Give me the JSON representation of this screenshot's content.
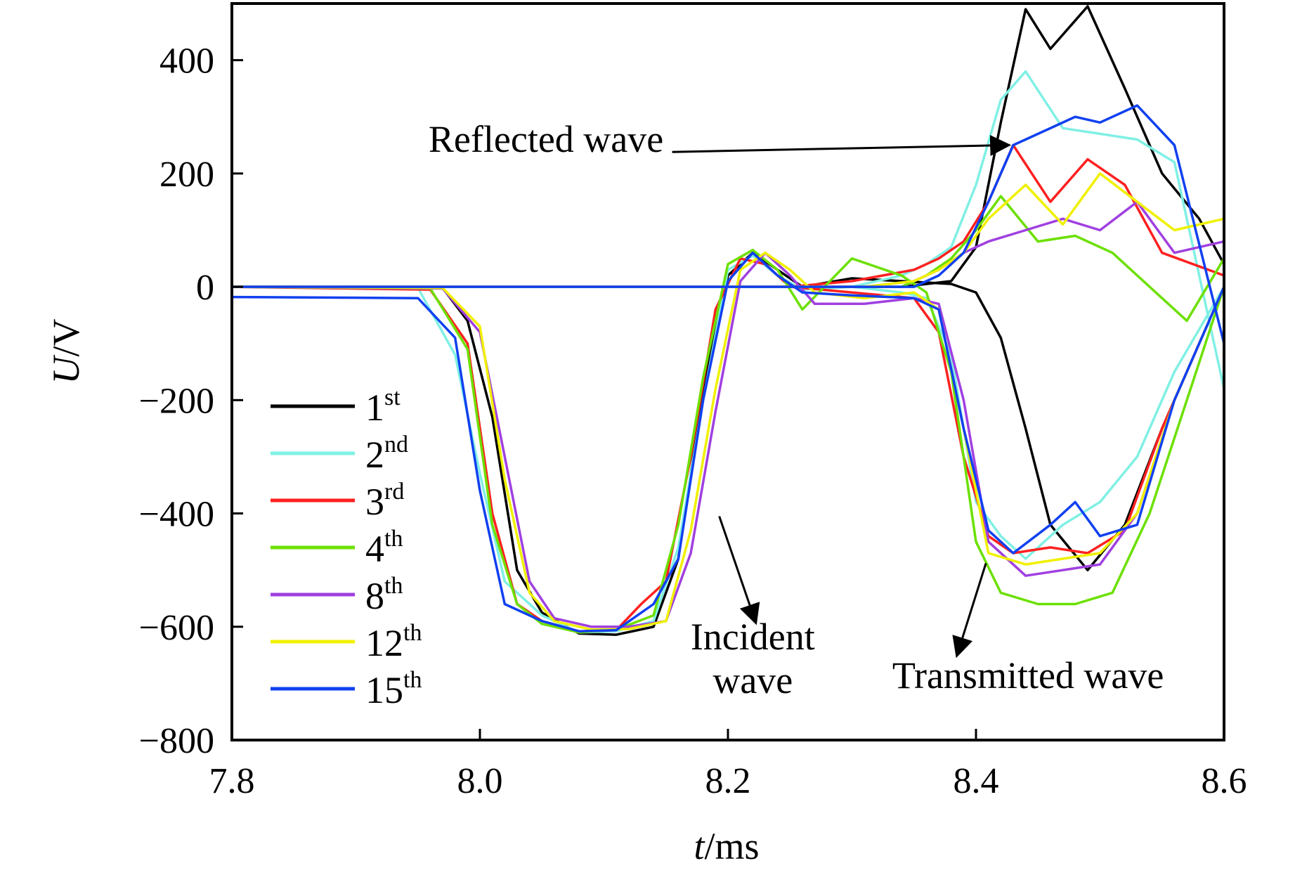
{
  "chart_data": {
    "type": "line",
    "xlabel_var": "t",
    "xlabel_unit": "/ms",
    "ylabel_var": "U",
    "ylabel_unit": "/V",
    "xlim": [
      7.8,
      8.6
    ],
    "ylim": [
      -800,
      500
    ],
    "xticks": [
      {
        "value": 7.8,
        "label": "7.8"
      },
      {
        "value": 8.0,
        "label": "8.0"
      },
      {
        "value": 8.2,
        "label": "8.2"
      },
      {
        "value": 8.4,
        "label": "8.4"
      },
      {
        "value": 8.6,
        "label": "8.6"
      }
    ],
    "yticks": [
      {
        "value": 400,
        "label": "400"
      },
      {
        "value": 200,
        "label": "200"
      },
      {
        "value": 0,
        "label": "0"
      },
      {
        "value": -200,
        "label": "−200"
      },
      {
        "value": -400,
        "label": "−400"
      },
      {
        "value": -600,
        "label": "−600"
      },
      {
        "value": -800,
        "label": "−800"
      }
    ],
    "grid": false,
    "legend_position": "lower-left",
    "annotations": [
      {
        "lines": [
          "Reflected wave"
        ],
        "anchor": "end",
        "x": 8.148,
        "y": 238,
        "arrow_from": [
          8.155,
          238
        ],
        "arrow_to": [
          8.425,
          250
        ]
      },
      {
        "lines": [
          "Incident",
          "wave"
        ],
        "anchor": "middle",
        "x": 8.22,
        "y": -640,
        "arrow_from": [
          8.193,
          -405
        ],
        "arrow_to": [
          8.222,
          -590
        ]
      },
      {
        "lines": [
          "Transmitted wave"
        ],
        "anchor": "middle",
        "x": 8.442,
        "y": -708,
        "arrow_from": [
          8.408,
          -488
        ],
        "arrow_to": [
          8.385,
          -648
        ]
      }
    ],
    "series": [
      {
        "name": "1",
        "sup": "st",
        "color": "#000000",
        "x": [
          7.8,
          7.97,
          7.99,
          8.01,
          8.03,
          8.05,
          8.08,
          8.11,
          8.14,
          8.16,
          8.18,
          8.2,
          8.22,
          8.24,
          8.26,
          8.3,
          8.34,
          8.38,
          8.4,
          8.42,
          8.44,
          8.46,
          8.49,
          8.52,
          8.55,
          8.58,
          8.6
        ],
        "y": [
          0,
          -2,
          -60,
          -230,
          -500,
          -575,
          -612,
          -614,
          -600,
          -480,
          -180,
          20,
          60,
          30,
          0,
          15,
          10,
          5,
          -10,
          -90,
          -250,
          -420,
          -500,
          -420,
          -250,
          -100,
          0
        ],
        "y2": [
          0,
          0,
          0,
          0,
          0,
          0,
          0,
          0,
          0,
          0,
          0,
          0,
          0,
          0,
          0,
          0,
          0,
          10,
          70,
          290,
          490,
          420,
          495,
          350,
          200,
          120,
          40
        ]
      },
      {
        "name": "2",
        "sup": "nd",
        "color": "#80f0e4",
        "x": [
          7.8,
          7.95,
          7.98,
          8.0,
          8.02,
          8.05,
          8.08,
          8.11,
          8.14,
          8.16,
          8.18,
          8.2,
          8.22,
          8.24,
          8.26,
          8.3,
          8.34,
          8.36,
          8.38,
          8.4,
          8.42,
          8.44,
          8.47,
          8.5,
          8.53,
          8.56,
          8.6
        ],
        "y": [
          0,
          -2,
          -120,
          -330,
          -520,
          -580,
          -610,
          -608,
          -590,
          -460,
          -200,
          30,
          55,
          20,
          -5,
          0,
          -10,
          -20,
          -120,
          -380,
          -440,
          -480,
          -420,
          -380,
          -300,
          -150,
          0
        ],
        "y2": [
          0,
          0,
          0,
          0,
          0,
          0,
          0,
          0,
          0,
          0,
          0,
          0,
          0,
          0,
          0,
          0,
          20,
          40,
          70,
          180,
          330,
          380,
          280,
          270,
          260,
          220,
          -180
        ]
      },
      {
        "name": "3",
        "sup": "rd",
        "color": "#ff2020",
        "x": [
          7.8,
          7.96,
          7.99,
          8.01,
          8.03,
          8.05,
          8.08,
          8.11,
          8.13,
          8.15,
          8.17,
          8.19,
          8.21,
          8.23,
          8.25,
          8.3,
          8.35,
          8.37,
          8.39,
          8.41,
          8.43,
          8.46,
          8.49,
          8.52,
          8.55,
          8.6
        ],
        "y": [
          0,
          -5,
          -100,
          -400,
          -560,
          -590,
          -608,
          -606,
          -560,
          -520,
          -300,
          -40,
          50,
          40,
          0,
          -10,
          -20,
          -80,
          -300,
          -440,
          -470,
          -460,
          -470,
          -430,
          -250,
          0
        ],
        "y2": [
          0,
          0,
          0,
          0,
          0,
          0,
          0,
          0,
          0,
          0,
          0,
          0,
          0,
          0,
          0,
          10,
          30,
          50,
          80,
          150,
          250,
          150,
          225,
          180,
          60,
          20
        ]
      },
      {
        "name": "4",
        "sup": "th",
        "color": "#6ce000",
        "x": [
          7.8,
          7.96,
          7.99,
          8.01,
          8.03,
          8.05,
          8.08,
          8.11,
          8.14,
          8.16,
          8.18,
          8.2,
          8.22,
          8.24,
          8.26,
          8.3,
          8.34,
          8.36,
          8.38,
          8.4,
          8.42,
          8.45,
          8.48,
          8.51,
          8.54,
          8.57,
          8.6
        ],
        "y": [
          0,
          -3,
          -110,
          -420,
          -560,
          -595,
          -610,
          -605,
          -580,
          -420,
          -160,
          40,
          65,
          30,
          -40,
          50,
          20,
          -10,
          -150,
          -450,
          -540,
          -560,
          -560,
          -540,
          -400,
          -200,
          0
        ],
        "y2": [
          0,
          0,
          0,
          0,
          0,
          0,
          0,
          0,
          0,
          0,
          0,
          0,
          0,
          0,
          0,
          0,
          0,
          20,
          50,
          100,
          160,
          80,
          90,
          60,
          0,
          -60,
          50
        ]
      },
      {
        "name": "8",
        "sup": "th",
        "color": "#a040e0",
        "x": [
          7.8,
          7.97,
          8.0,
          8.02,
          8.04,
          8.06,
          8.09,
          8.12,
          8.15,
          8.17,
          8.19,
          8.21,
          8.23,
          8.25,
          8.27,
          8.31,
          8.35,
          8.37,
          8.39,
          8.41,
          8.44,
          8.47,
          8.5,
          8.53,
          8.56,
          8.6
        ],
        "y": [
          0,
          -3,
          -80,
          -300,
          -520,
          -585,
          -600,
          -600,
          -590,
          -470,
          -220,
          10,
          60,
          20,
          -30,
          -30,
          -20,
          -30,
          -200,
          -450,
          -510,
          -500,
          -490,
          -400,
          -200,
          0
        ],
        "y2": [
          0,
          0,
          0,
          0,
          0,
          0,
          0,
          0,
          0,
          0,
          0,
          0,
          0,
          0,
          0,
          0,
          10,
          30,
          60,
          80,
          100,
          120,
          100,
          150,
          60,
          80
        ]
      },
      {
        "name": "12",
        "sup": "th",
        "color": "#f0f000",
        "x": [
          7.8,
          7.97,
          8.0,
          8.02,
          8.04,
          8.06,
          8.09,
          8.12,
          8.15,
          8.17,
          8.19,
          8.21,
          8.23,
          8.25,
          8.27,
          8.31,
          8.35,
          8.37,
          8.39,
          8.41,
          8.44,
          8.47,
          8.5,
          8.53,
          8.56,
          8.6
        ],
        "y": [
          0,
          -2,
          -70,
          -340,
          -540,
          -590,
          -605,
          -604,
          -590,
          -430,
          -180,
          30,
          60,
          30,
          -10,
          -20,
          -10,
          -40,
          -250,
          -470,
          -490,
          -480,
          -470,
          -400,
          -200,
          0
        ],
        "y2": [
          0,
          0,
          0,
          0,
          0,
          0,
          0,
          0,
          0,
          0,
          0,
          0,
          0,
          0,
          0,
          0,
          10,
          30,
          60,
          120,
          180,
          110,
          200,
          150,
          100,
          120
        ]
      },
      {
        "name": "15",
        "sup": "th",
        "color": "#1040f0",
        "x": [
          7.8,
          7.95,
          7.98,
          8.0,
          8.02,
          8.05,
          8.08,
          8.11,
          8.14,
          8.16,
          8.18,
          8.2,
          8.22,
          8.24,
          8.26,
          8.3,
          8.35,
          8.37,
          8.39,
          8.41,
          8.43,
          8.46,
          8.48,
          8.5,
          8.53,
          8.56,
          8.6
        ],
        "y": [
          -18,
          -20,
          -90,
          -360,
          -560,
          -590,
          -608,
          -606,
          -560,
          -480,
          -200,
          10,
          60,
          20,
          -10,
          -15,
          -20,
          -40,
          -250,
          -430,
          -470,
          -420,
          -380,
          -440,
          -420,
          -200,
          0
        ],
        "y2": [
          0,
          0,
          0,
          0,
          0,
          0,
          0,
          0,
          0,
          0,
          0,
          0,
          0,
          0,
          0,
          0,
          0,
          20,
          60,
          150,
          250,
          280,
          300,
          290,
          320,
          250,
          -100
        ]
      }
    ]
  }
}
